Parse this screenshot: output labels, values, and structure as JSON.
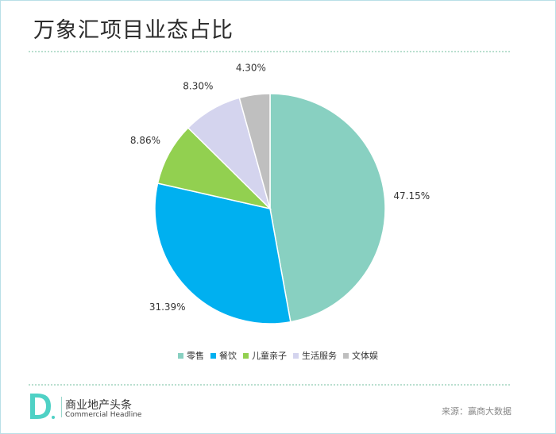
{
  "title": "万象汇项目业态占比",
  "chart_data": {
    "type": "pie",
    "categories": [
      "零售",
      "餐饮",
      "儿童亲子",
      "生活服务",
      "文体娱"
    ],
    "values": [
      47.15,
      31.39,
      8.86,
      8.3,
      4.3
    ],
    "value_labels": [
      "47.15%",
      "31.39%",
      "8.86%",
      "8.30%",
      "4.30%"
    ],
    "colors": [
      "#88d0c1",
      "#00b0f0",
      "#92d050",
      "#d4d4ee",
      "#bfbfbf"
    ],
    "legend_position": "bottom"
  },
  "brand": {
    "cn": "商业地产头条",
    "en": "Commercial Headline",
    "logo_color": "#4fd1c5"
  },
  "source": "来源：赢商大数据"
}
